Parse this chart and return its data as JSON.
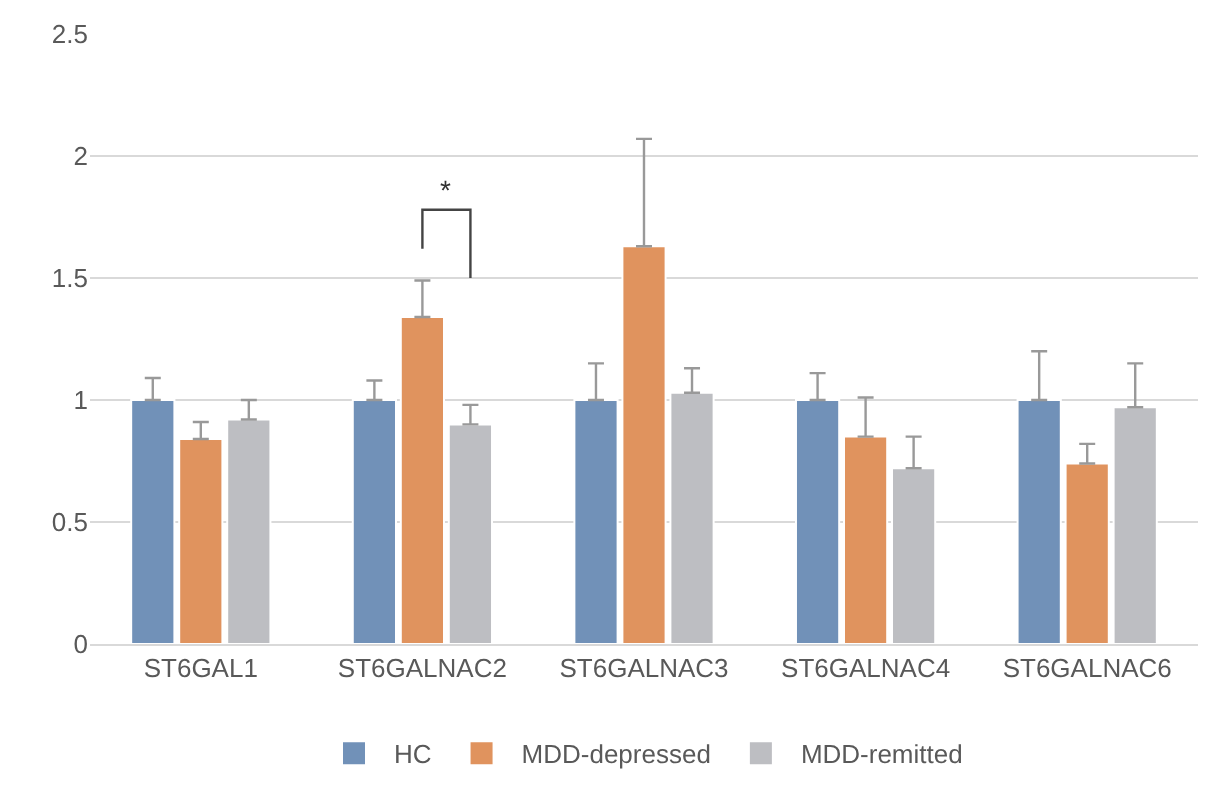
{
  "chart_data": {
    "type": "bar",
    "categories": [
      "ST6GAL1",
      "ST6GALNAC2",
      "ST6GALNAC3",
      "ST6GALNAC4",
      "ST6GALNAC6"
    ],
    "series": [
      {
        "name": "HC",
        "color": "#7191b8",
        "values": [
          1.0,
          1.0,
          1.0,
          1.0,
          1.0
        ],
        "errors": [
          [
            1.0,
            1.09
          ],
          [
            1.0,
            1.08
          ],
          [
            1.0,
            1.15
          ],
          [
            1.0,
            1.11
          ],
          [
            1.0,
            1.2
          ]
        ]
      },
      {
        "name": "MDD-depressed",
        "color": "#e0935e",
        "values": [
          0.84,
          1.34,
          1.63,
          0.85,
          0.74
        ],
        "errors": [
          [
            0.84,
            0.91
          ],
          [
            1.34,
            1.49
          ],
          [
            1.63,
            2.07
          ],
          [
            0.85,
            1.01
          ],
          [
            0.74,
            0.82
          ]
        ]
      },
      {
        "name": "MDD-remitted",
        "color": "#bdbec2",
        "values": [
          0.92,
          0.9,
          1.03,
          0.72,
          0.97
        ],
        "errors": [
          [
            0.92,
            1.0
          ],
          [
            0.9,
            0.98
          ],
          [
            1.03,
            1.13
          ],
          [
            0.72,
            0.85
          ],
          [
            0.97,
            1.15
          ]
        ]
      }
    ],
    "ylim": [
      0,
      2.5
    ],
    "yticks": [
      0,
      0.5,
      1,
      1.5,
      2,
      2.5
    ],
    "grid": "y",
    "legend": "bottom",
    "annotations": [
      "*"
    ]
  }
}
